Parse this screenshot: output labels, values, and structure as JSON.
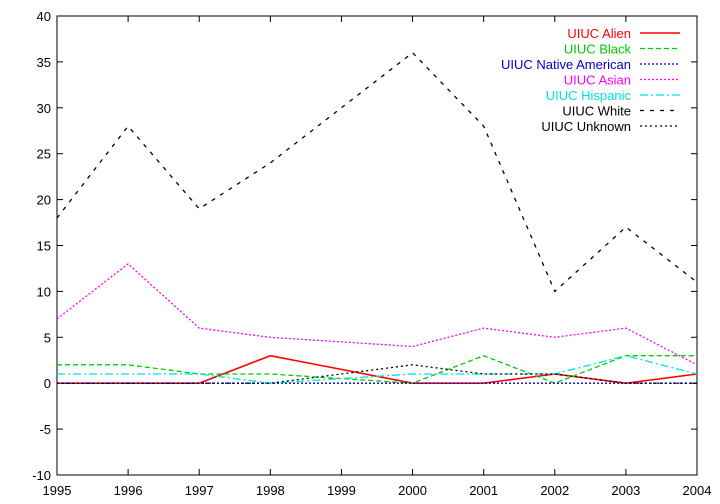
{
  "chart_data": {
    "type": "line",
    "title": "",
    "xlabel": "",
    "ylabel": "",
    "x": [
      1995,
      1996,
      1997,
      1998,
      1999,
      2000,
      2001,
      2002,
      2003,
      2004
    ],
    "xlim": [
      1995,
      2004
    ],
    "ylim": [
      -10,
      40
    ],
    "xticks": [
      "1995",
      "1996",
      "1997",
      "1998",
      "1999",
      "2000",
      "2001",
      "2002",
      "2003",
      "2004"
    ],
    "yticks": [
      "-10",
      "-5",
      "0",
      "5",
      "10",
      "15",
      "20",
      "25",
      "30",
      "35",
      "40"
    ],
    "grid": false,
    "legend_position": "top-right",
    "series": [
      {
        "name": "UIUC Alien",
        "color": "#ff0000",
        "dash": "solid",
        "values": [
          0,
          0,
          0,
          3,
          1.5,
          0,
          0,
          1,
          0,
          1
        ]
      },
      {
        "name": "UIUC Black",
        "color": "#00cc00",
        "dash": "dashed",
        "values": [
          2,
          2,
          1,
          1,
          0.5,
          0,
          3,
          0,
          3,
          3
        ]
      },
      {
        "name": "UIUC Native American",
        "color": "#0000cc",
        "dash": "dotted",
        "values": [
          0,
          0,
          0,
          0,
          0,
          0,
          0,
          0,
          0,
          0
        ]
      },
      {
        "name": "UIUC Asian",
        "color": "#ff00ff",
        "dash": "dotted",
        "values": [
          7,
          13,
          6,
          5,
          4.5,
          4,
          6,
          5,
          6,
          2
        ]
      },
      {
        "name": "UIUC Hispanic",
        "color": "#00e0e0",
        "dash": "dashdot",
        "values": [
          1,
          1,
          1,
          0,
          0.5,
          1,
          1,
          1,
          3,
          1
        ]
      },
      {
        "name": "UIUC White",
        "color": "#000000",
        "dash": "longdash",
        "values": [
          18,
          28,
          19,
          24,
          30,
          36,
          28,
          10,
          17,
          11
        ]
      },
      {
        "name": "UIUC Unknown",
        "color": "#000000",
        "dash": "denseDot",
        "values": [
          0,
          0,
          0,
          0,
          1,
          2,
          1,
          1,
          0,
          0
        ]
      }
    ]
  }
}
